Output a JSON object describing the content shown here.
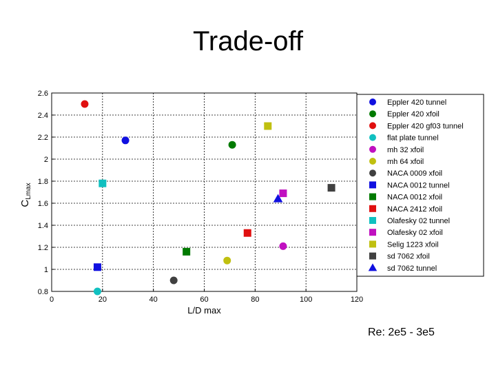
{
  "slide": {
    "title": "Trade-off",
    "footnote": "Re: 2e5 - 3e5"
  },
  "chart_data": {
    "type": "scatter",
    "xlabel": "L/D max",
    "ylabel_main": "C",
    "ylabel_sub": "Lmax",
    "xlim": [
      0,
      120
    ],
    "ylim": [
      0.8,
      2.6
    ],
    "xticks": [
      "0",
      "20",
      "40",
      "60",
      "80",
      "100",
      "120"
    ],
    "xtick_values": [
      0,
      20,
      40,
      60,
      80,
      100,
      120
    ],
    "yticks": [
      "0.8",
      "1",
      "1.2",
      "1.4",
      "1.6",
      "1.8",
      "2",
      "2.2",
      "2.4",
      "2.6"
    ],
    "ytick_values": [
      0.8,
      1.0,
      1.2,
      1.4,
      1.6,
      1.8,
      2.0,
      2.2,
      2.4,
      2.6
    ],
    "grid": true,
    "legend_position": "top-right",
    "series": [
      {
        "name": "Eppler 420 tunnel",
        "color": "#1010e0",
        "marker": "circle",
        "x": 29,
        "y": 2.17
      },
      {
        "name": "Eppler 420 xfoil",
        "color": "#007a00",
        "marker": "circle",
        "x": 71,
        "y": 2.13
      },
      {
        "name": "Eppler 420 gf03 tunnel",
        "color": "#e01010",
        "marker": "circle",
        "x": 13,
        "y": 2.5
      },
      {
        "name": "flat plate tunnel",
        "color": "#10c0c0",
        "marker": "circle",
        "x": 18,
        "y": 0.8
      },
      {
        "name": "mh 32 xfoil",
        "color": "#c010c0",
        "marker": "circle",
        "x": 91,
        "y": 1.21
      },
      {
        "name": "mh 64 xfoil",
        "color": "#c0c010",
        "marker": "circle",
        "x": 69,
        "y": 1.08
      },
      {
        "name": "NACA 0009 xfoil",
        "color": "#404040",
        "marker": "circle",
        "x": 48,
        "y": 0.9
      },
      {
        "name": "NACA 0012 tunnel",
        "color": "#1010e0",
        "marker": "square",
        "x": 18,
        "y": 1.02
      },
      {
        "name": "NACA 0012 xfoil",
        "color": "#007a00",
        "marker": "square",
        "x": 53,
        "y": 1.16
      },
      {
        "name": "NACA 2412 xfoil",
        "color": "#e01010",
        "marker": "square",
        "x": 77,
        "y": 1.33
      },
      {
        "name": "Olafesky 02 tunnel",
        "color": "#10c0c0",
        "marker": "square",
        "x": 20,
        "y": 1.78
      },
      {
        "name": "Olafesky 02 xfoil",
        "color": "#c010c0",
        "marker": "square",
        "x": 91,
        "y": 1.69
      },
      {
        "name": "Selig 1223 xfoil",
        "color": "#c0c010",
        "marker": "square",
        "x": 85,
        "y": 2.3
      },
      {
        "name": "sd 7062 xfoil",
        "color": "#404040",
        "marker": "square",
        "x": 110,
        "y": 1.74
      },
      {
        "name": "sd 7062 tunnel",
        "color": "#1010e0",
        "marker": "triangle",
        "x": 89,
        "y": 1.64
      }
    ]
  }
}
